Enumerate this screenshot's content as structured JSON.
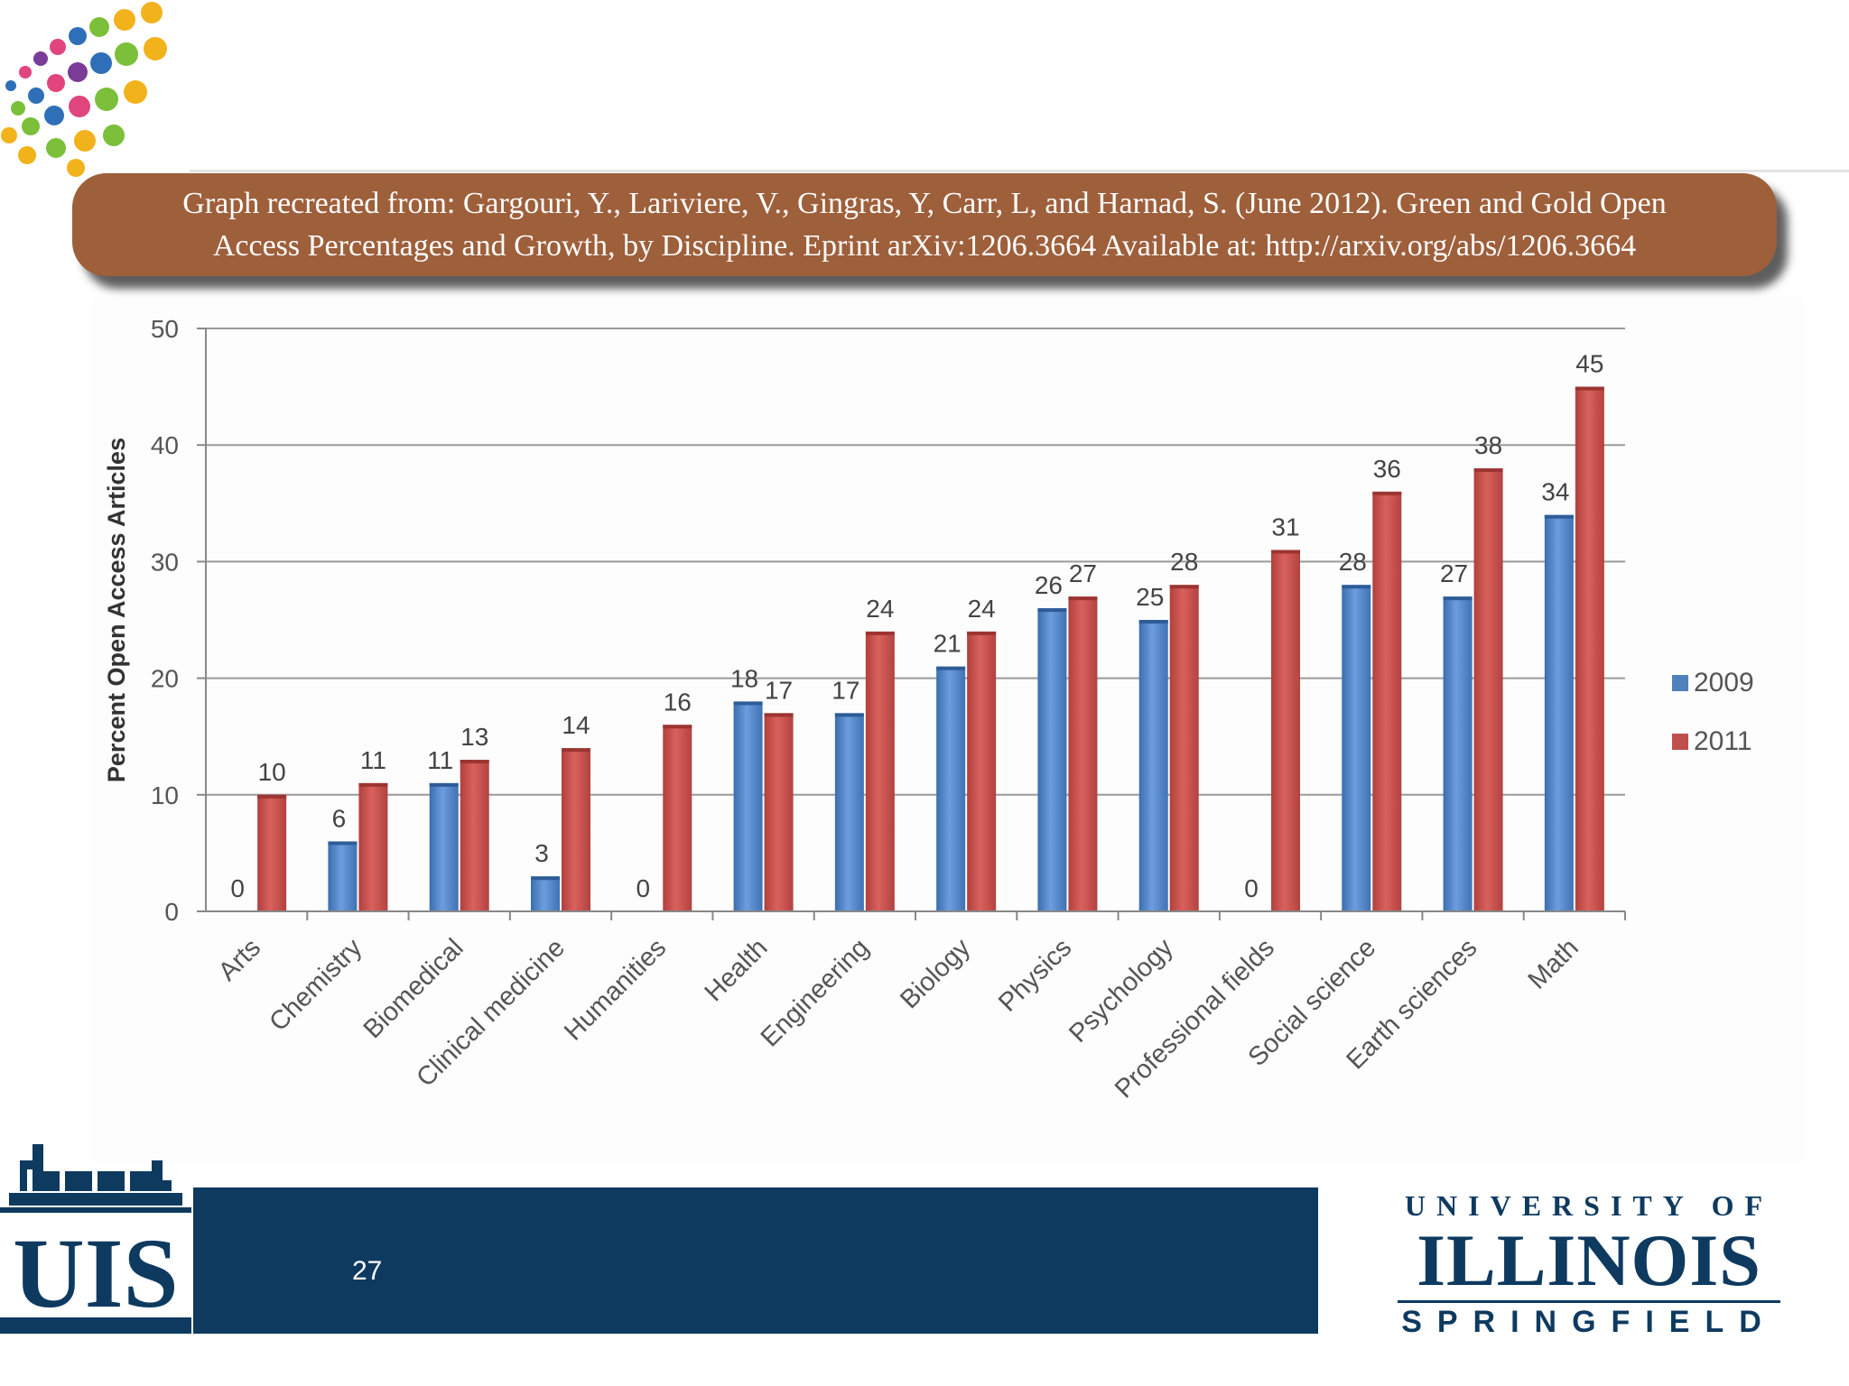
{
  "banner": {
    "line1": "Graph recreated from: Gargouri, Y., Lariviere, V., Gingras, Y, Carr, L, and Harnad, S. (June 2012). Green and Gold Open",
    "line2": "Access Percentages and Growth, by Discipline. Eprint arXiv:1206.3664 Available at: http://arxiv.org/abs/1206.3664"
  },
  "chart_data": {
    "type": "bar",
    "title": "",
    "xlabel": "",
    "ylabel": "Percent Open Access Articles",
    "ylim": [
      0,
      50
    ],
    "yticks": [
      0,
      10,
      20,
      30,
      40,
      50
    ],
    "grid": true,
    "legend_position": "right",
    "categories": [
      "Arts",
      "Chemistry",
      "Biomedical",
      "Clinical medicine",
      "Humanities",
      "Health",
      "Engineering",
      "Biology",
      "Physics",
      "Psychology",
      "Professional fields",
      "Social science",
      "Earth sciences",
      "Math"
    ],
    "series": [
      {
        "name": "2009",
        "color": "#4f81bd",
        "values": [
          0,
          6,
          11,
          3,
          0,
          18,
          17,
          21,
          26,
          25,
          0,
          28,
          27,
          34
        ]
      },
      {
        "name": "2011",
        "color": "#c0504d",
        "values": [
          10,
          11,
          13,
          14,
          16,
          17,
          24,
          24,
          27,
          28,
          31,
          36,
          38,
          45
        ]
      }
    ]
  },
  "footer": {
    "page_number": "27",
    "uis_logo_text": "UIS",
    "university_line1": "UNIVERSITY OF",
    "university_line2": "ILLINOIS",
    "university_line3": "SPRINGFIELD",
    "footer_color": "#0e3a60"
  }
}
